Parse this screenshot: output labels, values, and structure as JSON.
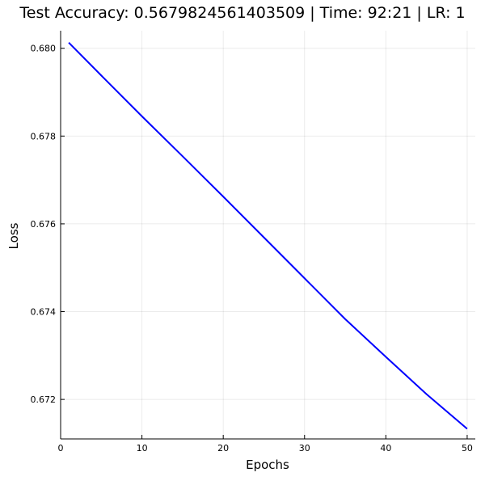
{
  "chart_data": {
    "type": "line",
    "title": "Test Accuracy: 0.5679824561403509 | Time: 92:21 | LR: 1",
    "xlabel": "Epochs",
    "ylabel": "Loss",
    "xlim": [
      0,
      51
    ],
    "ylim": [
      0.6711,
      0.6804
    ],
    "xticks": [
      0,
      10,
      20,
      30,
      40,
      50
    ],
    "yticks": [
      0.672,
      0.674,
      0.676,
      0.678,
      0.68
    ],
    "ytick_labels": [
      "0.672",
      "0.674",
      "0.676",
      "0.678",
      "0.680"
    ],
    "grid": true,
    "series": [
      {
        "color": "#0000ff",
        "x": [
          1,
          5,
          10,
          15,
          20,
          25,
          30,
          35,
          40,
          45,
          50
        ],
        "y": [
          0.68013,
          0.67938,
          0.67845,
          0.67754,
          0.67662,
          0.67569,
          0.67476,
          0.67383,
          0.67297,
          0.67212,
          0.67133
        ]
      }
    ]
  }
}
